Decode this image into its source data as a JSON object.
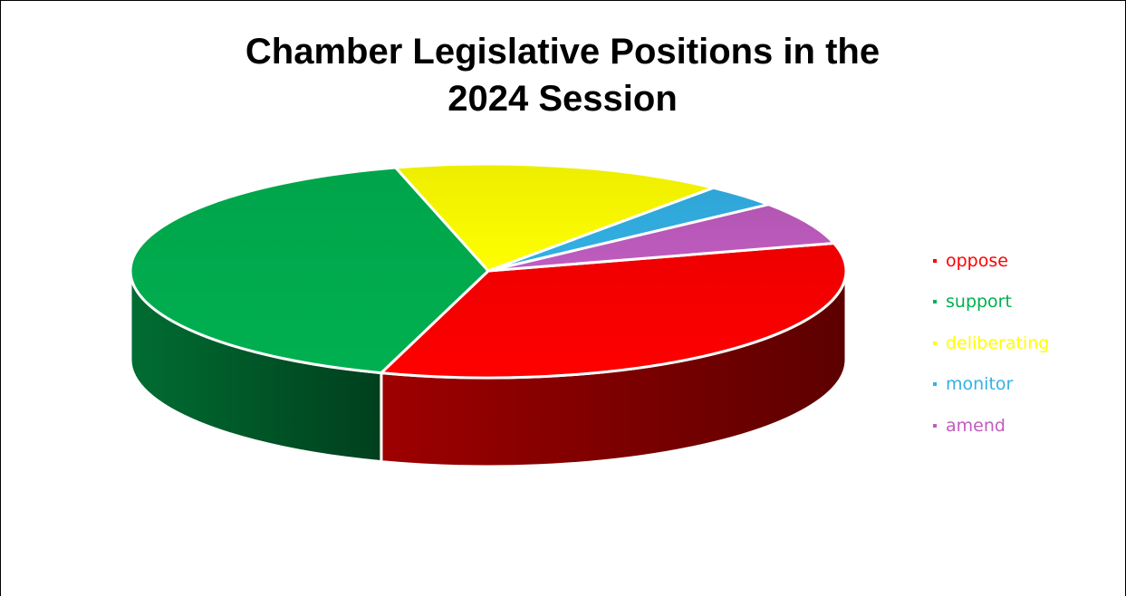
{
  "chart_data": {
    "type": "pie",
    "style": "3d-exploded-perspective",
    "title_lines": [
      "Chamber Legislative Positions in the",
      "2024 Session"
    ],
    "labels": [
      "oppose",
      "support",
      "deliberating",
      "monitor",
      "amend"
    ],
    "values": [
      34,
      41,
      15,
      3.5,
      6.5
    ],
    "unit": "percent of positions (estimated from slice size)",
    "colors": [
      "#ff0000",
      "#00b050",
      "#ffff00",
      "#33b1e6",
      "#c05cc0"
    ],
    "legend_position": "right"
  }
}
